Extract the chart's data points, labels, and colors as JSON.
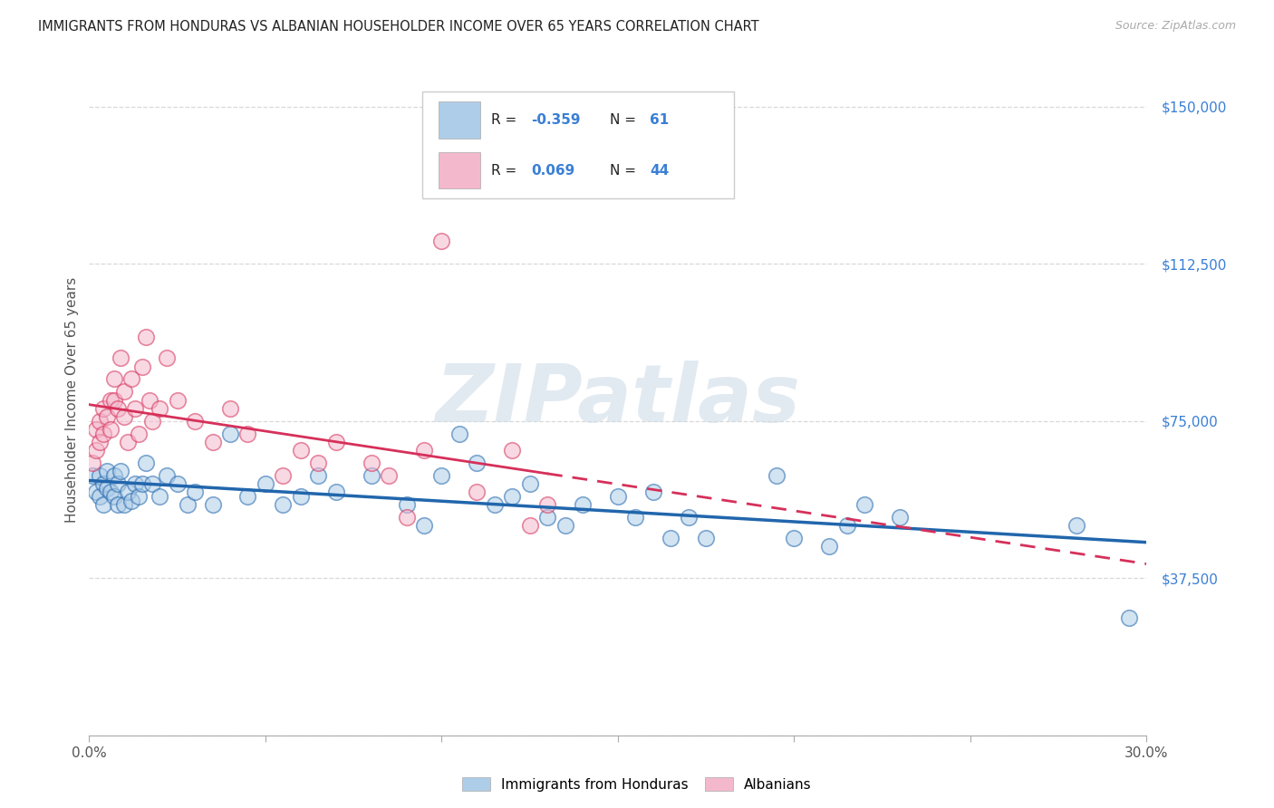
{
  "title": "IMMIGRANTS FROM HONDURAS VS ALBANIAN HOUSEHOLDER INCOME OVER 65 YEARS CORRELATION CHART",
  "source": "Source: ZipAtlas.com",
  "ylabel": "Householder Income Over 65 years",
  "xmin": 0.0,
  "xmax": 0.3,
  "ymin": 0,
  "ymax": 160000,
  "yticks": [
    0,
    37500,
    75000,
    112500,
    150000
  ],
  "ytick_labels": [
    "",
    "$37,500",
    "$75,000",
    "$112,500",
    "$150,000"
  ],
  "xticks": [
    0.0,
    0.05,
    0.1,
    0.15,
    0.2,
    0.25,
    0.3
  ],
  "xtick_labels": [
    "0.0%",
    "",
    "",
    "",
    "",
    "",
    "30.0%"
  ],
  "blue_color": "#aecde8",
  "pink_color": "#f4b8cc",
  "blue_line_color": "#2166ac",
  "pink_line_color": "#d6305a",
  "blue_scatter_x": [
    0.001,
    0.002,
    0.003,
    0.003,
    0.004,
    0.004,
    0.005,
    0.005,
    0.006,
    0.007,
    0.007,
    0.008,
    0.008,
    0.009,
    0.01,
    0.011,
    0.012,
    0.013,
    0.014,
    0.015,
    0.016,
    0.018,
    0.02,
    0.022,
    0.025,
    0.028,
    0.03,
    0.035,
    0.04,
    0.045,
    0.05,
    0.055,
    0.06,
    0.065,
    0.07,
    0.08,
    0.09,
    0.095,
    0.1,
    0.105,
    0.11,
    0.115,
    0.12,
    0.125,
    0.13,
    0.135,
    0.14,
    0.15,
    0.155,
    0.16,
    0.165,
    0.17,
    0.175,
    0.195,
    0.2,
    0.21,
    0.215,
    0.22,
    0.23,
    0.28,
    0.295
  ],
  "blue_scatter_y": [
    62000,
    58000,
    57000,
    62000,
    60000,
    55000,
    63000,
    59000,
    58000,
    62000,
    57000,
    60000,
    55000,
    63000,
    55000,
    58000,
    56000,
    60000,
    57000,
    60000,
    65000,
    60000,
    57000,
    62000,
    60000,
    55000,
    58000,
    55000,
    72000,
    57000,
    60000,
    55000,
    57000,
    62000,
    58000,
    62000,
    55000,
    50000,
    62000,
    72000,
    65000,
    55000,
    57000,
    60000,
    52000,
    50000,
    55000,
    57000,
    52000,
    58000,
    47000,
    52000,
    47000,
    62000,
    47000,
    45000,
    50000,
    55000,
    52000,
    50000,
    28000
  ],
  "pink_scatter_x": [
    0.001,
    0.002,
    0.002,
    0.003,
    0.003,
    0.004,
    0.004,
    0.005,
    0.006,
    0.006,
    0.007,
    0.007,
    0.008,
    0.009,
    0.01,
    0.01,
    0.011,
    0.012,
    0.013,
    0.014,
    0.015,
    0.016,
    0.017,
    0.018,
    0.02,
    0.022,
    0.025,
    0.03,
    0.035,
    0.04,
    0.045,
    0.055,
    0.06,
    0.065,
    0.07,
    0.08,
    0.085,
    0.09,
    0.095,
    0.1,
    0.11,
    0.12,
    0.125,
    0.13
  ],
  "pink_scatter_y": [
    65000,
    68000,
    73000,
    70000,
    75000,
    72000,
    78000,
    76000,
    80000,
    73000,
    85000,
    80000,
    78000,
    90000,
    82000,
    76000,
    70000,
    85000,
    78000,
    72000,
    88000,
    95000,
    80000,
    75000,
    78000,
    90000,
    80000,
    75000,
    70000,
    78000,
    72000,
    62000,
    68000,
    65000,
    70000,
    65000,
    62000,
    52000,
    68000,
    118000,
    58000,
    68000,
    50000,
    55000
  ],
  "watermark": "ZIPatlas",
  "background_color": "#ffffff",
  "grid_color": "#d8d8d8"
}
